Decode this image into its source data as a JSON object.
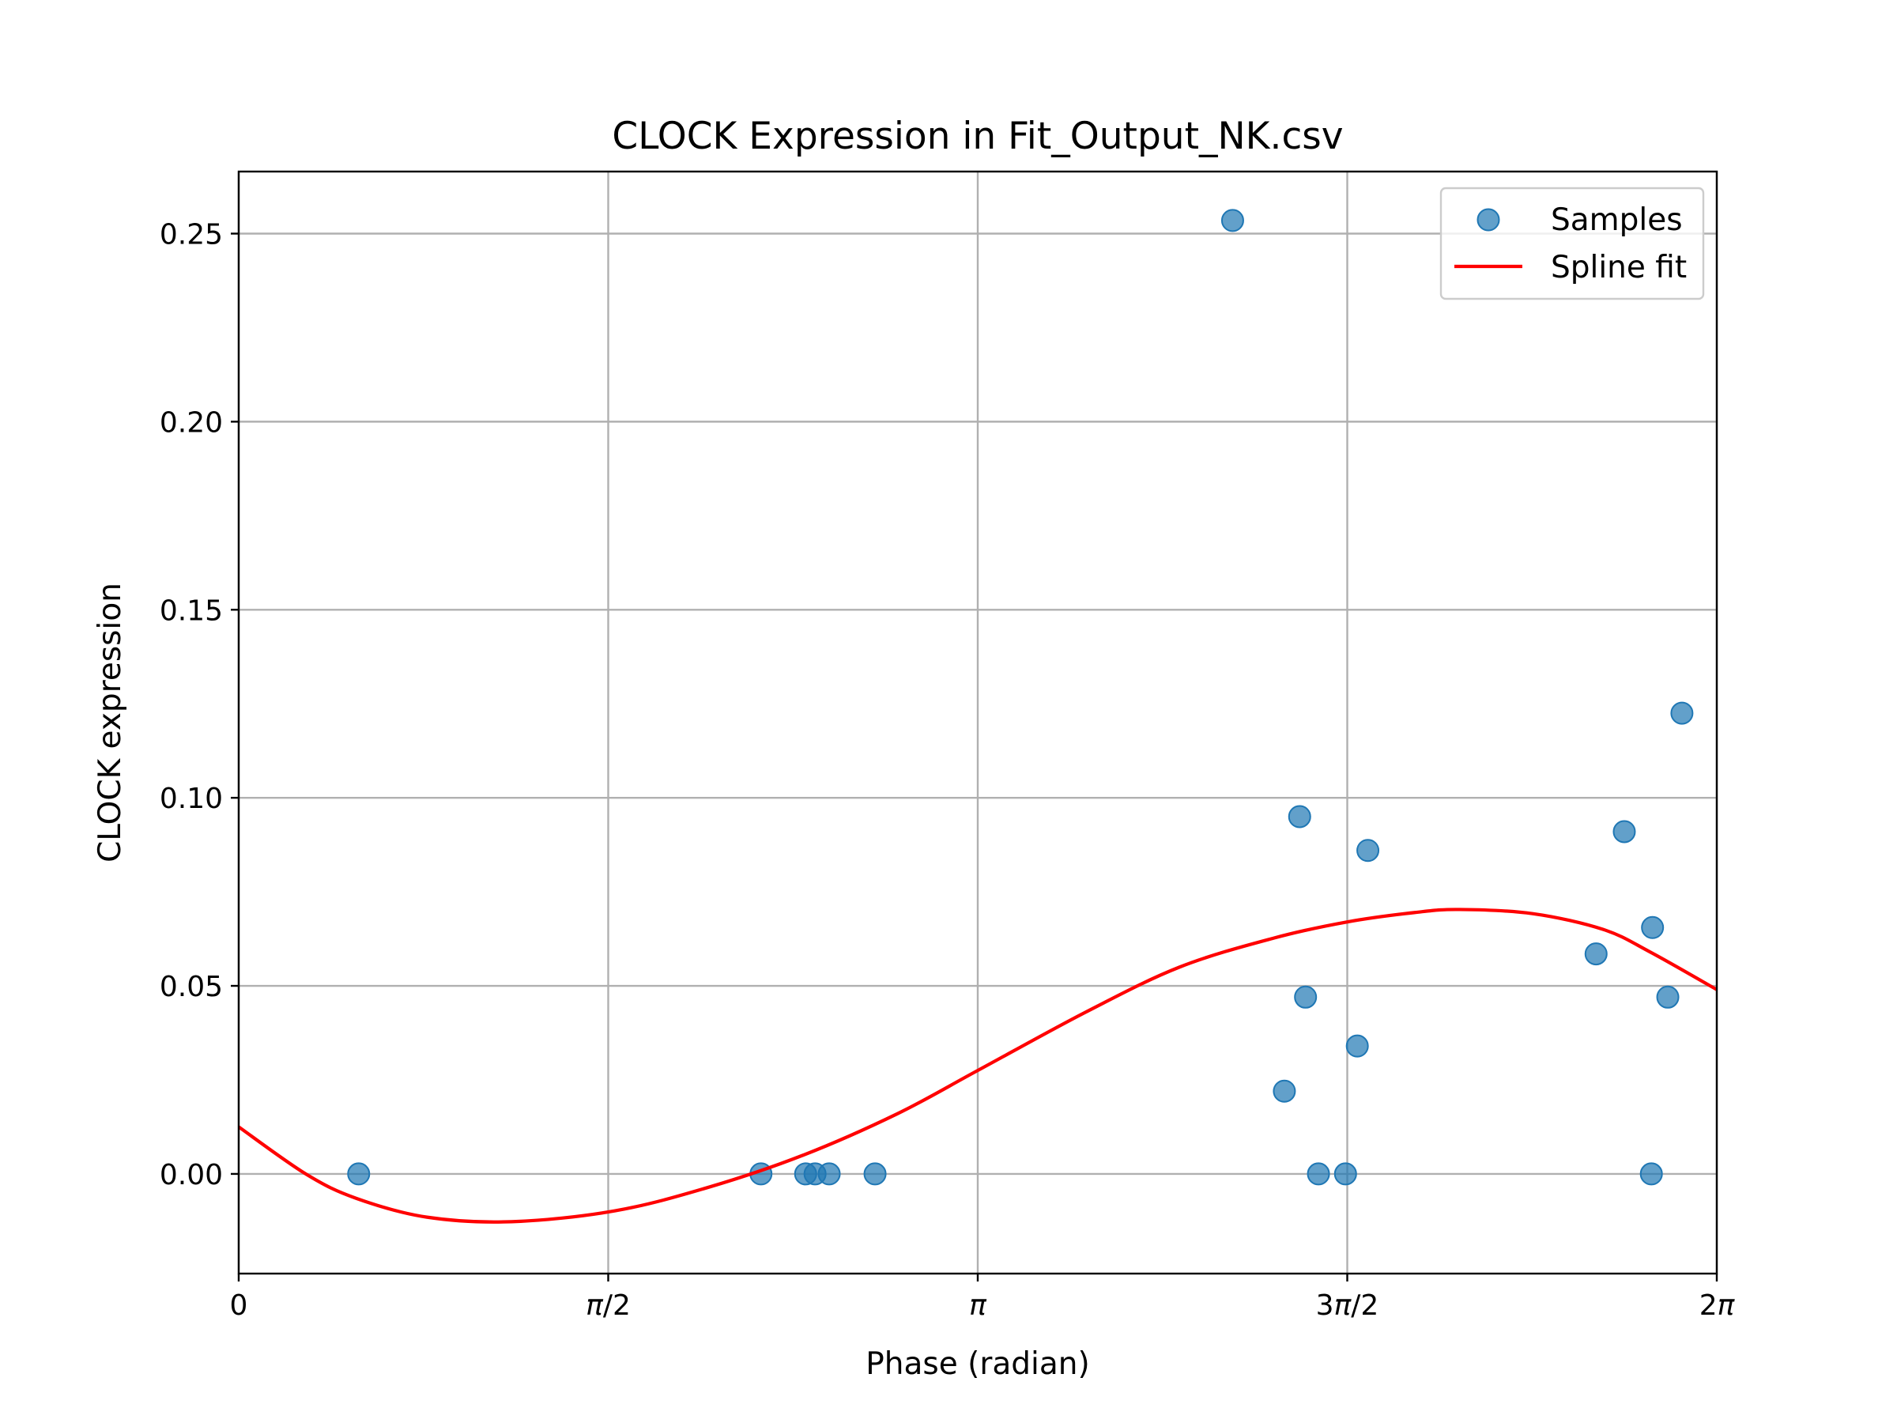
{
  "chart_data": {
    "type": "scatter",
    "title": "CLOCK Expression in Fit_Output_NK.csv",
    "xlabel": "Phase (radian)",
    "ylabel": "CLOCK expression",
    "xlim": [
      0,
      6.2832
    ],
    "ylim": [
      -0.0265,
      0.2665
    ],
    "grid": true,
    "legend_position": "top-right",
    "x_ticks": [
      {
        "value": 0,
        "label": "0",
        "italic_pi": false
      },
      {
        "value": 1.5708,
        "label": "π/2",
        "italic_pi": true
      },
      {
        "value": 3.1416,
        "label": "π",
        "italic_pi": true
      },
      {
        "value": 4.7124,
        "label": "3π/2",
        "italic_pi": true
      },
      {
        "value": 6.2832,
        "label": "2π",
        "italic_pi": true
      }
    ],
    "y_ticks": [
      {
        "value": 0.0,
        "label": "0.00"
      },
      {
        "value": 0.05,
        "label": "0.05"
      },
      {
        "value": 0.1,
        "label": "0.10"
      },
      {
        "value": 0.15,
        "label": "0.15"
      },
      {
        "value": 0.2,
        "label": "0.20"
      },
      {
        "value": 0.25,
        "label": "0.25"
      }
    ],
    "series": [
      {
        "name": "Samples",
        "kind": "scatter",
        "color": "#1f77b4",
        "points": [
          {
            "x": 0.51,
            "y": 0.0
          },
          {
            "x": 2.22,
            "y": 0.0
          },
          {
            "x": 2.41,
            "y": 0.0
          },
          {
            "x": 2.45,
            "y": 0.0
          },
          {
            "x": 2.51,
            "y": 0.0
          },
          {
            "x": 2.705,
            "y": 0.0
          },
          {
            "x": 4.225,
            "y": 0.2535
          },
          {
            "x": 4.445,
            "y": 0.022
          },
          {
            "x": 4.51,
            "y": 0.095
          },
          {
            "x": 4.535,
            "y": 0.047
          },
          {
            "x": 4.59,
            "y": 0.0
          },
          {
            "x": 4.705,
            "y": 0.0
          },
          {
            "x": 4.755,
            "y": 0.034
          },
          {
            "x": 4.8,
            "y": 0.086
          },
          {
            "x": 5.77,
            "y": 0.0585
          },
          {
            "x": 5.89,
            "y": 0.091
          },
          {
            "x": 6.01,
            "y": 0.0655
          },
          {
            "x": 6.075,
            "y": 0.047
          },
          {
            "x": 6.135,
            "y": 0.1225
          },
          {
            "x": 6.005,
            "y": 0.0
          }
        ]
      },
      {
        "name": "Spline fit",
        "kind": "line",
        "color": "#ff0000",
        "points": [
          {
            "x": 0.0,
            "y": 0.0125
          },
          {
            "x": 0.285,
            "y": 0.0
          },
          {
            "x": 0.5,
            "y": -0.0065
          },
          {
            "x": 0.8,
            "y": -0.0115
          },
          {
            "x": 1.16,
            "y": -0.0127
          },
          {
            "x": 1.6,
            "y": -0.0098
          },
          {
            "x": 2.0,
            "y": -0.0035
          },
          {
            "x": 2.4,
            "y": 0.005
          },
          {
            "x": 2.8,
            "y": 0.016
          },
          {
            "x": 3.1416,
            "y": 0.0275
          },
          {
            "x": 3.6,
            "y": 0.043
          },
          {
            "x": 4.0,
            "y": 0.055
          },
          {
            "x": 4.4,
            "y": 0.0627
          },
          {
            "x": 4.7124,
            "y": 0.067
          },
          {
            "x": 5.0,
            "y": 0.0695
          },
          {
            "x": 5.19,
            "y": 0.0703
          },
          {
            "x": 5.5,
            "y": 0.0692
          },
          {
            "x": 5.8,
            "y": 0.065
          },
          {
            "x": 6.0,
            "y": 0.059
          },
          {
            "x": 6.2832,
            "y": 0.049
          }
        ]
      }
    ]
  }
}
